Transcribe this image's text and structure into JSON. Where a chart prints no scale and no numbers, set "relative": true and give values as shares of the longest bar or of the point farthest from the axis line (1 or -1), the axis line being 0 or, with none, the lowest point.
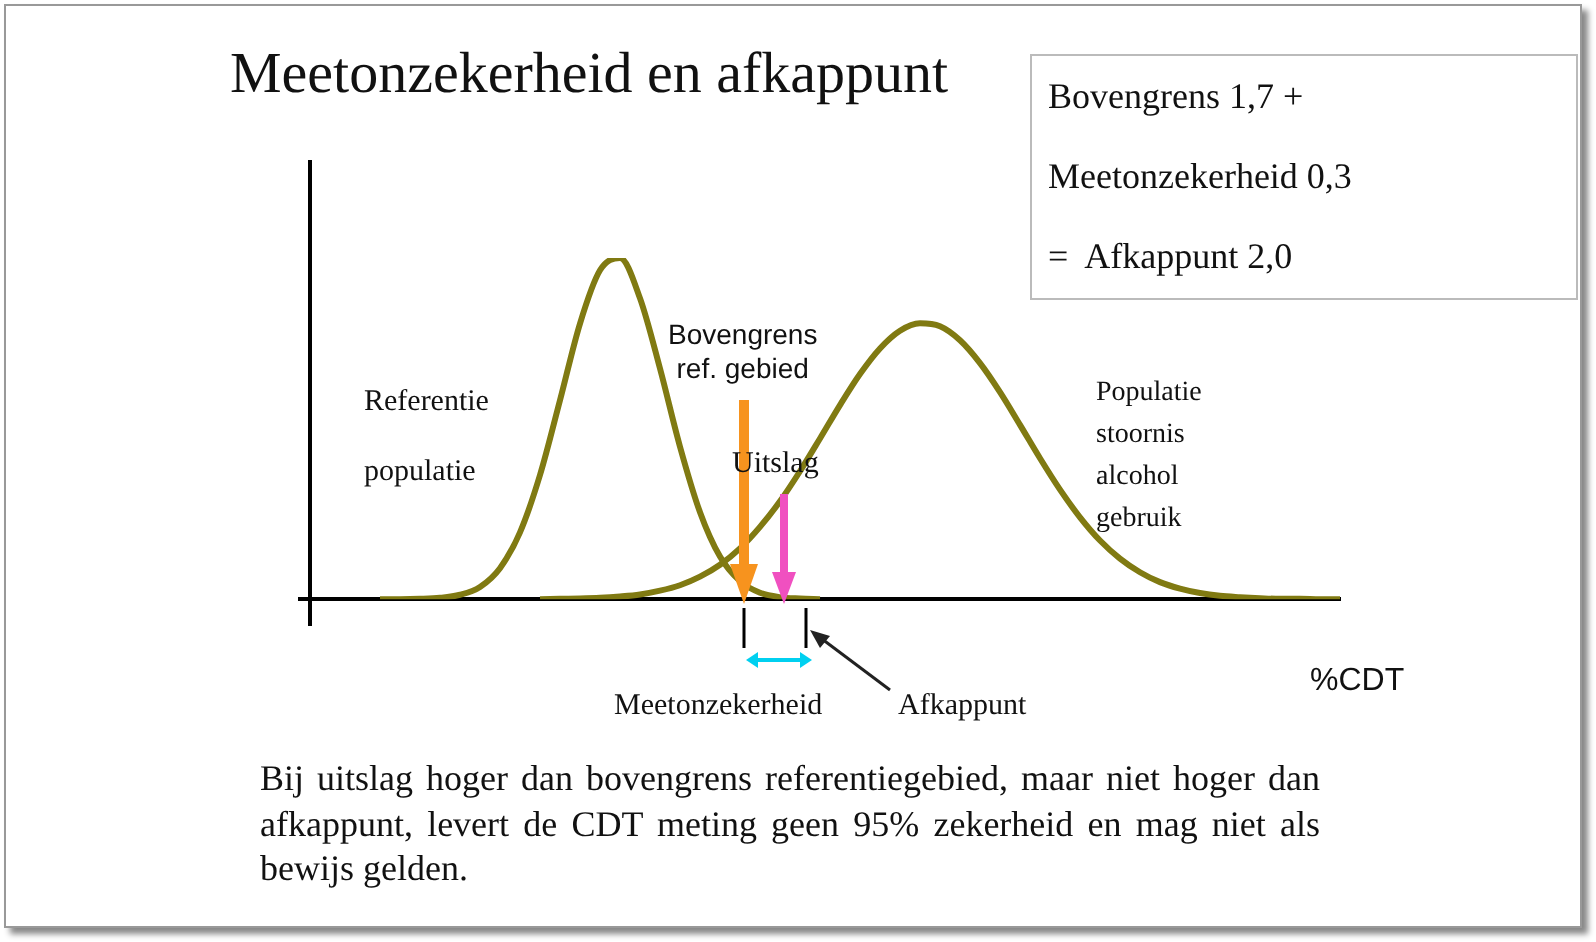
{
  "chart_data": {
    "type": "line",
    "title": "Meetonzekerheid en afkappunt",
    "xlabel": "%CDT",
    "relative": true,
    "legend": false,
    "marker": "none",
    "line_style": "solid",
    "grid": false,
    "categories": [
      null,
      null,
      null,
      null,
      null,
      null,
      null,
      null,
      null,
      null,
      null,
      null,
      null,
      null,
      null,
      null,
      null,
      null,
      null,
      null,
      null,
      null,
      null,
      null,
      null,
      null,
      null,
      null,
      null,
      null,
      null,
      null,
      null,
      null,
      null,
      null,
      null,
      null,
      null,
      null,
      null,
      null,
      null,
      null,
      null,
      null,
      null,
      null,
      null,
      null,
      null,
      null,
      null
    ],
    "series": [
      {
        "color": "#807a12",
        "values": [
          null,
          null,
          null,
          null,
          0,
          0,
          0.001,
          0.004,
          0.013,
          0.036,
          0.091,
          0.196,
          0.364,
          0.583,
          0.808,
          0.964,
          1,
          0.882,
          0.676,
          0.447,
          0.255,
          0.125,
          0.053,
          0.019,
          0.006,
          0.002,
          0,
          null,
          null,
          null,
          null,
          null,
          null,
          null,
          null,
          null,
          null,
          null,
          null,
          null,
          null,
          null,
          null,
          null,
          null,
          null,
          null,
          null,
          null,
          null,
          null,
          null,
          null
        ]
      },
      {
        "color": "#807a12",
        "values": [
          null,
          null,
          null,
          null,
          null,
          null,
          null,
          null,
          null,
          null,
          null,
          null,
          0,
          0.001,
          0.002,
          0.004,
          0.008,
          0.014,
          0.025,
          0.041,
          0.066,
          0.101,
          0.149,
          0.212,
          0.287,
          0.375,
          0.471,
          0.569,
          0.66,
          0.735,
          0.787,
          0.809,
          0.8,
          0.759,
          0.692,
          0.607,
          0.511,
          0.413,
          0.321,
          0.24,
          0.172,
          0.119,
          0.079,
          0.05,
          0.031,
          0.018,
          0.01,
          0.006,
          0.003,
          0.001,
          0.001,
          0,
          0
        ]
      }
    ],
    "annotations": [
      "Bovengrens 1,7 +",
      "Meetonzekerheid 0,3",
      "=  Afkappunt 2,0",
      "Bovengrens\nref. gebied",
      "Referentie",
      "populatie",
      "Uitslag",
      "Populatie\nstoornis\nalcohol\ngebruik",
      "Meetonzekerheid",
      "Afkappunt",
      "Bij uitslag hoger dan bovengrens referentiegebied,  maar niet hoger dan  afkappunt, levert de CDT meting geen 95% zekerheid en mag niet als bewijs gelden."
    ]
  }
}
